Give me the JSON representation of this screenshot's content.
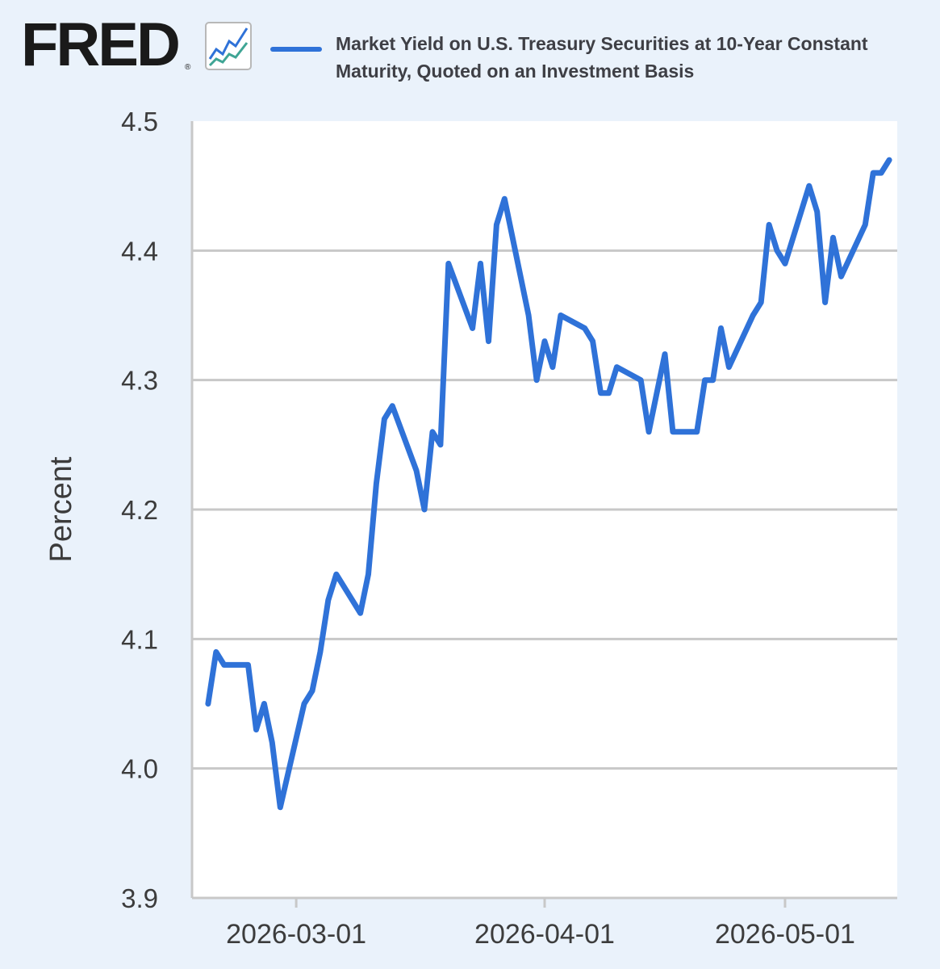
{
  "brand": {
    "logo_text": "FRED",
    "registered_mark": "®",
    "icon": "fred-line-chart-icon"
  },
  "colors": {
    "background": "#eaf2fb",
    "plot_background": "#ffffff",
    "series": "#2f72d8",
    "grid": "#c8c8c8",
    "text": "#3c3c3c"
  },
  "chart_data": {
    "type": "line",
    "title": "",
    "xlabel": "",
    "ylabel": "Percent",
    "ylim": [
      3.9,
      4.5
    ],
    "y_ticks": [
      3.9,
      4.0,
      4.1,
      4.2,
      4.3,
      4.4,
      4.5
    ],
    "y_tick_labels": [
      "3.9",
      "4.0",
      "4.1",
      "4.2",
      "4.3",
      "4.4",
      "4.5"
    ],
    "x_ticks": [
      "2026-03-01",
      "2026-04-01",
      "2026-05-01"
    ],
    "xlim": [
      "2026-02-16",
      "2026-05-15"
    ],
    "grid": "horizontal",
    "legend": "top",
    "series": [
      {
        "name": "Market Yield on U.S. Treasury Securities at 10-Year Constant Maturity, Quoted on an Investment Basis",
        "x": [
          "2026-02-19",
          "2026-02-20",
          "2026-02-23",
          "2026-02-24",
          "2026-02-25",
          "2026-02-26",
          "2026-02-27",
          "2026-03-02",
          "2026-03-03",
          "2026-03-04",
          "2026-03-05",
          "2026-03-06",
          "2026-03-09",
          "2026-03-10",
          "2026-03-11",
          "2026-03-12",
          "2026-03-13",
          "2026-03-16",
          "2026-03-17",
          "2026-03-18",
          "2026-03-19",
          "2026-03-20",
          "2026-03-23",
          "2026-03-24",
          "2026-03-25",
          "2026-03-26",
          "2026-03-27",
          "2026-03-30",
          "2026-03-31",
          "2026-04-01",
          "2026-04-02",
          "2026-04-03",
          "2026-04-06",
          "2026-04-07",
          "2026-04-08",
          "2026-04-09",
          "2026-04-10",
          "2026-04-13",
          "2026-04-14",
          "2026-04-15",
          "2026-04-16",
          "2026-04-17",
          "2026-04-20",
          "2026-04-21",
          "2026-04-22",
          "2026-04-23",
          "2026-04-24",
          "2026-04-27",
          "2026-04-28",
          "2026-04-29",
          "2026-04-30",
          "2026-05-01",
          "2026-05-04",
          "2026-05-05",
          "2026-05-06",
          "2026-05-07",
          "2026-05-08",
          "2026-05-11",
          "2026-05-12",
          "2026-05-13",
          "2026-05-14"
        ],
        "values": [
          4.09,
          4.08,
          4.08,
          4.03,
          4.05,
          4.02,
          3.97,
          4.05,
          4.06,
          4.09,
          4.13,
          4.15,
          4.12,
          4.15,
          4.22,
          4.27,
          4.28,
          4.23,
          4.2,
          4.26,
          4.25,
          4.39,
          4.34,
          4.39,
          4.33,
          4.42,
          4.44,
          4.35,
          4.3,
          4.33,
          4.31,
          4.35,
          4.34,
          4.33,
          4.29,
          4.29,
          4.31,
          4.3,
          4.26,
          4.29,
          4.32,
          4.26,
          4.26,
          4.3,
          4.3,
          4.34,
          4.31,
          4.35,
          4.36,
          4.42,
          4.4,
          4.39,
          4.45,
          4.43,
          4.36,
          4.41,
          4.38,
          4.42,
          4.46,
          4.46,
          4.47
        ],
        "first_point": {
          "x": "2026-02-18",
          "y": 4.05
        }
      }
    ]
  }
}
